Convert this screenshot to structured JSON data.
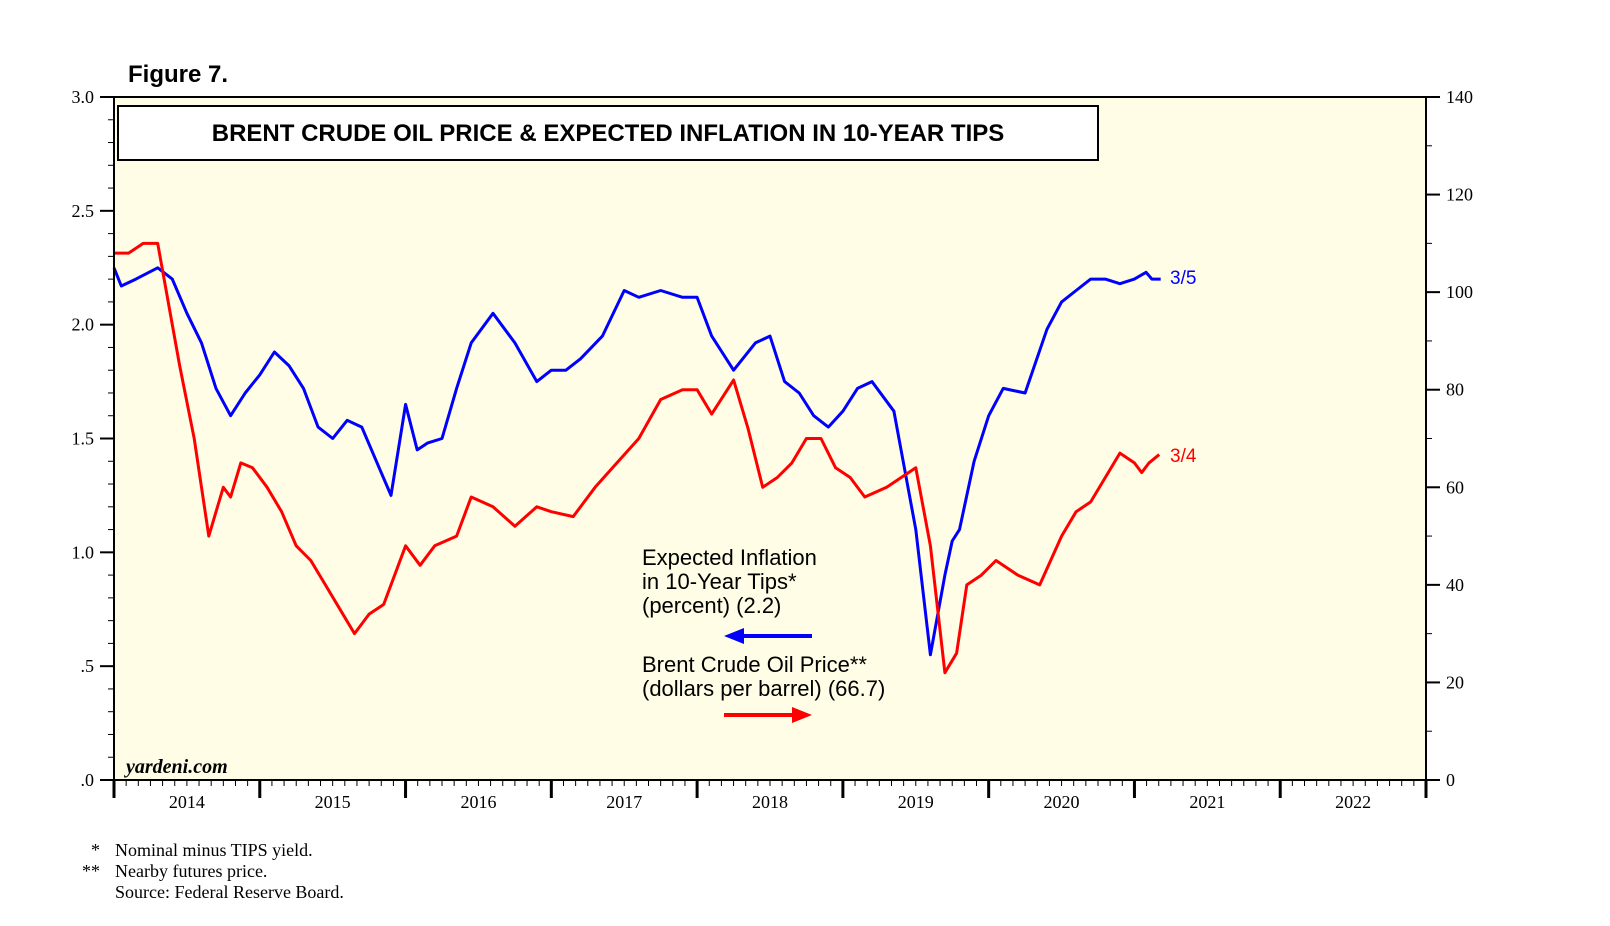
{
  "figure_label": "Figure 7.",
  "colors": {
    "background": "#ffffff",
    "plot_bg": "#fffde6",
    "inflation": "#0000ff",
    "oil": "#ff0000",
    "axis": "#000000"
  },
  "watermark": "yardeni.com",
  "footnotes": {
    "line1_marker": "*",
    "line1_text": "Nominal minus TIPS yield.",
    "line2_marker": "**",
    "line2_text": "Nearby futures price.",
    "line3_text": "Source: Federal Reserve Board."
  },
  "chart_data": {
    "type": "line",
    "title": "BRENT CRUDE OIL PRICE & EXPECTED INFLATION IN 10-YEAR TIPS",
    "x_range": [
      2014.0,
      2023.0
    ],
    "x_ticks": [
      "2014",
      "2015",
      "2016",
      "2017",
      "2018",
      "2019",
      "2020",
      "2021",
      "2022"
    ],
    "left_axis": {
      "range": [
        0,
        3.0
      ],
      "tick_values": [
        0,
        0.5,
        1.0,
        1.5,
        2.0,
        2.5,
        3.0
      ],
      "tick_labels": [
        ".0",
        ".5",
        "1.0",
        "1.5",
        "2.0",
        "2.5",
        "3.0"
      ]
    },
    "right_axis": {
      "range": [
        0,
        140
      ],
      "tick_values": [
        0,
        20,
        40,
        60,
        80,
        100,
        120,
        140
      ],
      "tick_labels": [
        "0",
        "20",
        "40",
        "60",
        "80",
        "100",
        "120",
        "140"
      ]
    },
    "series": [
      {
        "name": "Expected Inflation in 10-Year Tips* (percent) (2.2)",
        "legend_line1": "Expected Inflation",
        "legend_line2": "in 10-Year Tips*",
        "legend_line3": "(percent) (2.2)",
        "axis": "left",
        "end_label": "3/5",
        "x": [
          2014.0,
          2014.05,
          2014.15,
          2014.3,
          2014.4,
          2014.5,
          2014.6,
          2014.7,
          2014.8,
          2014.9,
          2015.0,
          2015.1,
          2015.2,
          2015.3,
          2015.4,
          2015.5,
          2015.6,
          2015.7,
          2015.8,
          2015.9,
          2016.0,
          2016.08,
          2016.15,
          2016.25,
          2016.35,
          2016.45,
          2016.6,
          2016.75,
          2016.9,
          2017.0,
          2017.1,
          2017.2,
          2017.35,
          2017.5,
          2017.6,
          2017.75,
          2017.9,
          2018.0,
          2018.1,
          2018.25,
          2018.4,
          2018.5,
          2018.6,
          2018.7,
          2018.8,
          2018.9,
          2019.0,
          2019.1,
          2019.2,
          2019.35,
          2019.5,
          2019.6,
          2019.7,
          2019.75,
          2019.8,
          2019.85,
          2019.9,
          2020.0,
          2020.1,
          2020.25,
          2020.4,
          2020.5,
          2020.6,
          2020.7,
          2020.8,
          2020.9,
          2021.0,
          2021.08,
          2021.12,
          2021.18
        ],
        "values": [
          2.25,
          2.17,
          2.2,
          2.25,
          2.2,
          2.05,
          1.92,
          1.72,
          1.6,
          1.7,
          1.78,
          1.88,
          1.82,
          1.72,
          1.55,
          1.5,
          1.58,
          1.55,
          1.4,
          1.25,
          1.65,
          1.45,
          1.48,
          1.5,
          1.72,
          1.92,
          2.05,
          1.92,
          1.75,
          1.8,
          1.8,
          1.85,
          1.95,
          2.15,
          2.12,
          2.15,
          2.12,
          2.12,
          1.95,
          1.8,
          1.92,
          1.95,
          1.75,
          1.7,
          1.6,
          1.55,
          1.62,
          1.72,
          1.75,
          1.62,
          1.1,
          0.55,
          0.9,
          1.05,
          1.1,
          1.25,
          1.4,
          1.6,
          1.72,
          1.7,
          1.98,
          2.1,
          2.15,
          2.2,
          2.2,
          2.18,
          2.2,
          2.23,
          2.2,
          2.2
        ]
      },
      {
        "name": "Brent Crude Oil Price** (dollars per barrel) (66.7)",
        "legend_line1": "Brent Crude Oil Price**",
        "legend_line2": "(dollars per barrel) (66.7)",
        "axis": "right",
        "end_label": "3/4",
        "x": [
          2014.0,
          2014.1,
          2014.2,
          2014.3,
          2014.45,
          2014.55,
          2014.65,
          2014.75,
          2014.8,
          2014.87,
          2014.95,
          2015.05,
          2015.15,
          2015.25,
          2015.35,
          2015.45,
          2015.55,
          2015.65,
          2015.75,
          2015.85,
          2016.0,
          2016.1,
          2016.2,
          2016.35,
          2016.45,
          2016.6,
          2016.75,
          2016.9,
          2017.0,
          2017.15,
          2017.3,
          2017.45,
          2017.6,
          2017.75,
          2017.9,
          2018.0,
          2018.1,
          2018.25,
          2018.35,
          2018.45,
          2018.55,
          2018.65,
          2018.75,
          2018.85,
          2018.95,
          2019.05,
          2019.15,
          2019.3,
          2019.5,
          2019.6,
          2019.7,
          2019.78,
          2019.85,
          2019.95,
          2020.05,
          2020.2,
          2020.35,
          2020.5,
          2020.6,
          2020.7,
          2020.8,
          2020.9,
          2021.0,
          2021.05,
          2021.1,
          2021.17
        ],
        "values": [
          108,
          108,
          110,
          110,
          85,
          70,
          50,
          60,
          58,
          65,
          64,
          60,
          55,
          48,
          45,
          40,
          35,
          30,
          34,
          36,
          48,
          44,
          48,
          50,
          58,
          56,
          52,
          56,
          55,
          54,
          60,
          65,
          70,
          78,
          80,
          80,
          75,
          82,
          72,
          60,
          62,
          65,
          70,
          70,
          64,
          62,
          58,
          60,
          64,
          48,
          22,
          26,
          40,
          42,
          45,
          42,
          40,
          50,
          55,
          57,
          62,
          67,
          65,
          63,
          65,
          66.7
        ]
      }
    ]
  }
}
